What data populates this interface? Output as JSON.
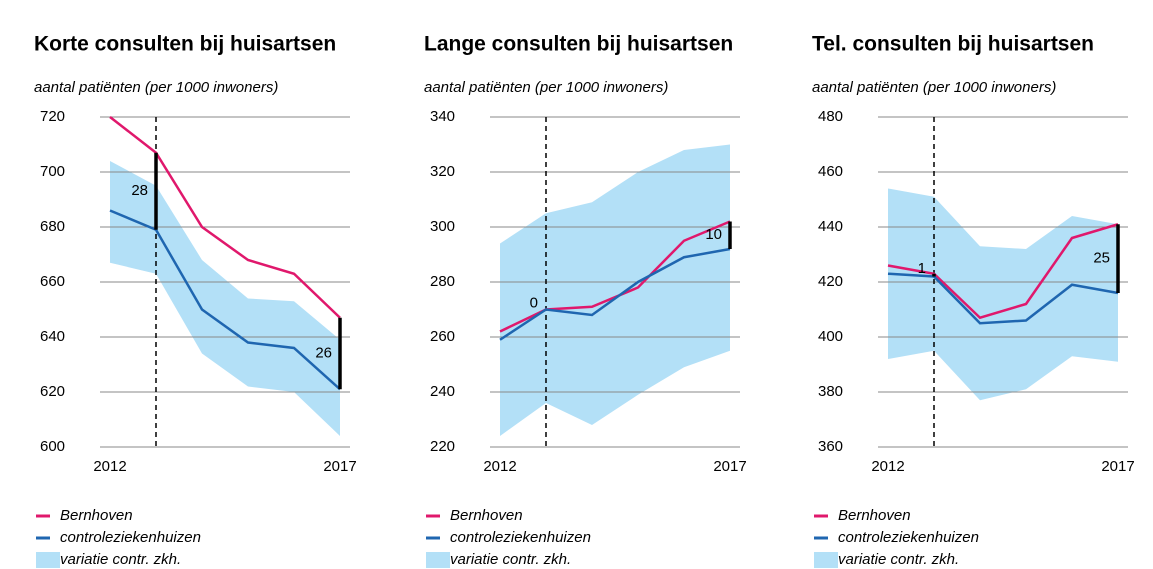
{
  "chart_data": [
    {
      "type": "line",
      "title": "Korte consulten bij huisartsen",
      "subtitle": "aantal patiënten (per 1000 inwoners)",
      "x": [
        2012,
        2013,
        2014,
        2015,
        2016,
        2017
      ],
      "xlim": [
        2012,
        2017
      ],
      "xticks": [
        2012,
        2017
      ],
      "ylim": [
        600,
        720
      ],
      "yticks": [
        600,
        620,
        640,
        660,
        680,
        700,
        720
      ],
      "grid": true,
      "vline": 2013,
      "series": [
        {
          "name": "Bernhoven",
          "color": "#e0186c",
          "values": [
            720,
            707,
            680,
            668,
            663,
            647
          ]
        },
        {
          "name": "controleziekenhuizen",
          "color": "#1f66b0",
          "values": [
            686,
            679,
            650,
            638,
            636,
            621
          ]
        }
      ],
      "band": {
        "name": "variatie contr. zkh.",
        "color": "#b3e0f7",
        "upper": [
          704,
          695,
          668,
          654,
          653,
          639
        ],
        "lower": [
          667,
          663,
          634,
          622,
          620,
          604
        ]
      },
      "annotations": [
        {
          "x": 2013,
          "text": "28"
        },
        {
          "x": 2017,
          "text": "26"
        }
      ]
    },
    {
      "type": "line",
      "title": "Lange consulten bij huisartsen",
      "subtitle": "aantal patiënten (per 1000 inwoners)",
      "x": [
        2012,
        2013,
        2014,
        2015,
        2016,
        2017
      ],
      "xlim": [
        2012,
        2017
      ],
      "xticks": [
        2012,
        2017
      ],
      "ylim": [
        220,
        340
      ],
      "yticks": [
        220,
        240,
        260,
        280,
        300,
        320,
        340
      ],
      "grid": true,
      "vline": 2013,
      "series": [
        {
          "name": "Bernhoven",
          "color": "#e0186c",
          "values": [
            262,
            270,
            271,
            278,
            295,
            302
          ]
        },
        {
          "name": "controleziekenhuizen",
          "color": "#1f66b0",
          "values": [
            259,
            270,
            268,
            280,
            289,
            292
          ]
        }
      ],
      "band": {
        "name": "variatie contr. zkh.",
        "color": "#b3e0f7",
        "upper": [
          294,
          305,
          309,
          320,
          328,
          330
        ],
        "lower": [
          224,
          236,
          228,
          239,
          249,
          255
        ]
      },
      "annotations": [
        {
          "x": 2013,
          "text": "0"
        },
        {
          "x": 2017,
          "text": "10"
        }
      ]
    },
    {
      "type": "line",
      "title": "Tel. consulten bij huisartsen",
      "subtitle": "aantal patiënten (per 1000 inwoners)",
      "x": [
        2012,
        2013,
        2014,
        2015,
        2016,
        2017
      ],
      "xlim": [
        2012,
        2017
      ],
      "xticks": [
        2012,
        2017
      ],
      "ylim": [
        360,
        480
      ],
      "yticks": [
        360,
        380,
        400,
        420,
        440,
        460,
        480
      ],
      "grid": true,
      "vline": 2013,
      "series": [
        {
          "name": "Bernhoven",
          "color": "#e0186c",
          "values": [
            426,
            423,
            407,
            412,
            436,
            441
          ]
        },
        {
          "name": "controleziekenhuizen",
          "color": "#1f66b0",
          "values": [
            423,
            422,
            405,
            406,
            419,
            416
          ]
        }
      ],
      "band": {
        "name": "variatie contr. zkh.",
        "color": "#b3e0f7",
        "upper": [
          454,
          451,
          433,
          432,
          444,
          441
        ],
        "lower": [
          392,
          395,
          377,
          381,
          393,
          391
        ]
      },
      "annotations": [
        {
          "x": 2013,
          "text": "1"
        },
        {
          "x": 2017,
          "text": "25"
        }
      ]
    }
  ]
}
